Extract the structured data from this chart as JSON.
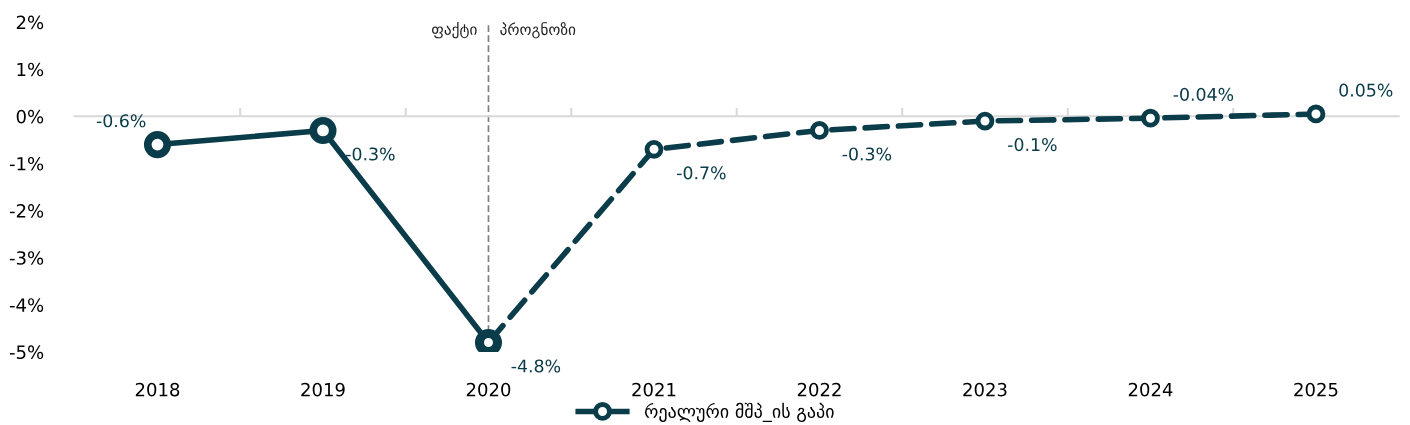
{
  "chart_data": {
    "type": "line",
    "categories": [
      "2018",
      "2019",
      "2020",
      "2021",
      "2022",
      "2023",
      "2024",
      "2025"
    ],
    "series": [
      {
        "color": "#0b3c49",
        "line_style": "solid",
        "values": [
          -0.6,
          -0.3,
          -4.8,
          null,
          null,
          null,
          null,
          null
        ],
        "value_labels": [
          "-0.6%",
          "-0.3%",
          "-4.8%",
          null,
          null,
          null,
          null,
          null
        ]
      },
      {
        "name": "რეალური მშპ_ის გაპი",
        "color": "#0b3c49",
        "line_style": "dashed",
        "values": [
          null,
          null,
          -4.8,
          -0.7,
          -0.3,
          -0.1,
          -0.04,
          0.05
        ],
        "value_labels": [
          null,
          null,
          null,
          "-0.7%",
          "-0.3%",
          "-0.1%",
          "-0.04%",
          "0.05%"
        ]
      }
    ],
    "marker": "circle",
    "ylim": [
      -5,
      2
    ],
    "yticks": [
      {
        "value": -5,
        "label": "-5%"
      },
      {
        "value": -4,
        "label": "-4%"
      },
      {
        "value": -3,
        "label": "-3%"
      },
      {
        "value": -2,
        "label": "-2%"
      },
      {
        "value": -1,
        "label": "-1%"
      },
      {
        "value": 0,
        "label": "0%"
      },
      {
        "value": 1,
        "label": "1%"
      },
      {
        "value": 2,
        "label": "2%"
      }
    ],
    "ref_lines": [
      {
        "axis": "x",
        "value": "2020",
        "color": "#7f7f7f",
        "line_style": "dashed"
      }
    ],
    "annotations": [
      {
        "text": "ფაქტი",
        "x": "2020",
        "y": 2
      },
      {
        "text": "პროგნოზი",
        "x": "2020",
        "y": 2
      }
    ],
    "grid": false,
    "legend": "bottom"
  }
}
